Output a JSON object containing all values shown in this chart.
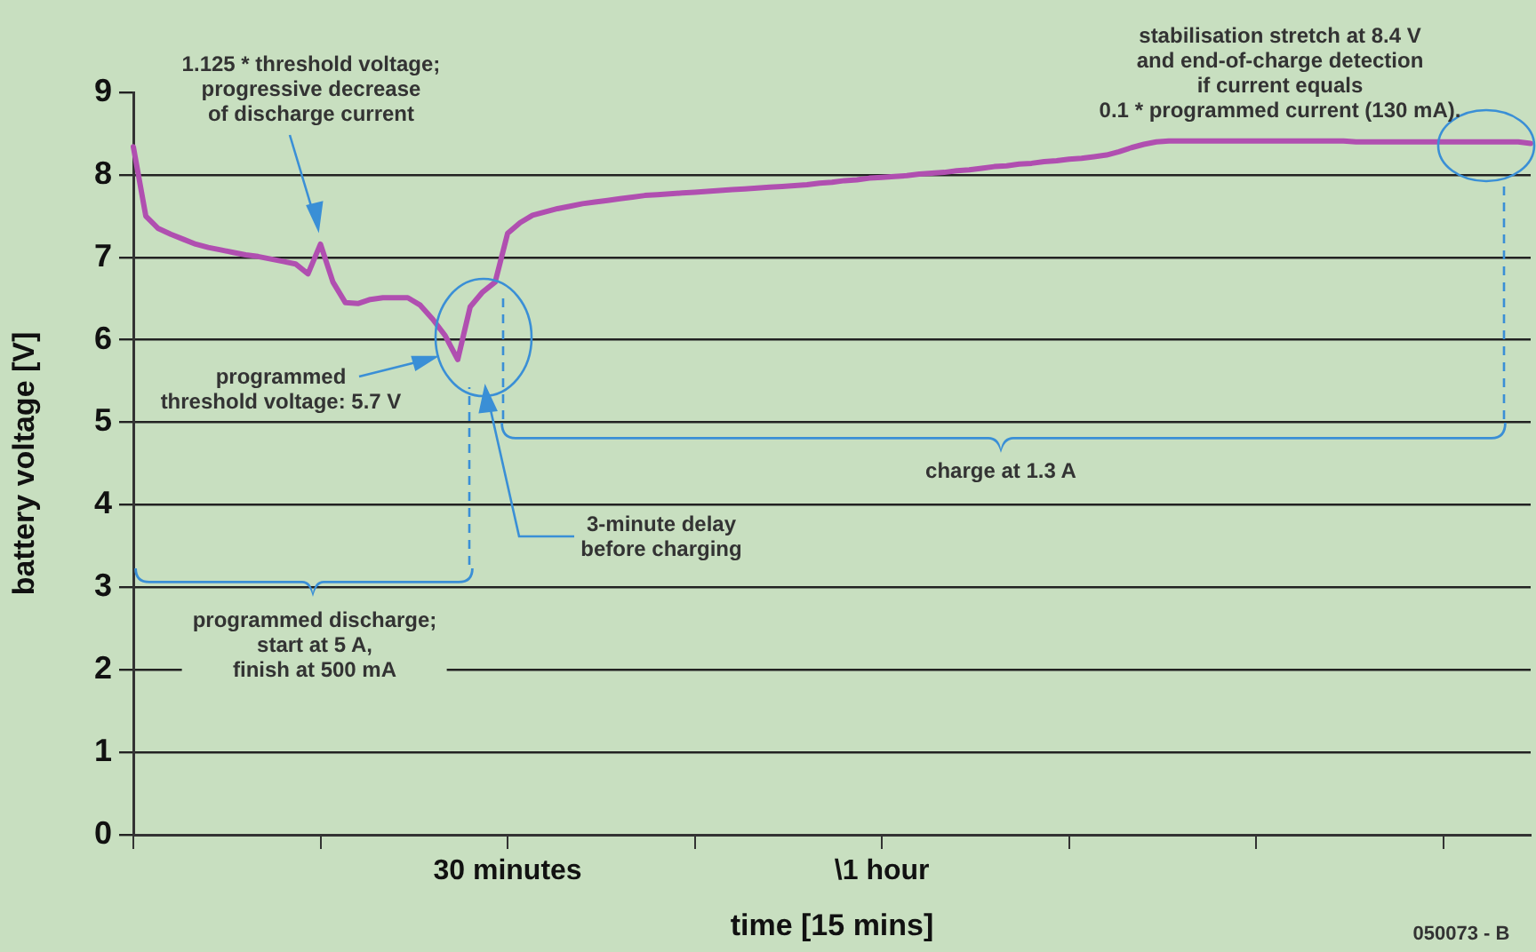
{
  "chart_data": {
    "type": "line",
    "xlabel": "time [15 mins]",
    "ylabel": "battery voltage [V]",
    "categories": [
      null,
      null,
      null,
      null,
      null,
      null,
      null,
      null,
      null,
      null,
      null,
      null,
      null,
      null,
      null,
      null,
      null,
      null,
      null,
      null,
      null,
      null,
      null,
      null,
      null,
      null,
      null,
      null,
      null,
      null,
      "30 minutes",
      null,
      null,
      null,
      null,
      null,
      null,
      null,
      null,
      null,
      null,
      null,
      null,
      null,
      null,
      null,
      null,
      null,
      null,
      null,
      null,
      null,
      null,
      null,
      null,
      null,
      null,
      null,
      null,
      null,
      "\\1 hour",
      null,
      null,
      null,
      null,
      null,
      null,
      null,
      null,
      null,
      null,
      null,
      null,
      null,
      null,
      null,
      null,
      null,
      null,
      null,
      null,
      null,
      null,
      null,
      null,
      null,
      null,
      null,
      null,
      null,
      null,
      null,
      null,
      null,
      null,
      null,
      null,
      null,
      null,
      null,
      null,
      null,
      null,
      null,
      null,
      null,
      null,
      null,
      null,
      null,
      null,
      null,
      null
    ],
    "ylim": [
      0,
      9
    ],
    "yticks": [
      0,
      1,
      2,
      3,
      4,
      5,
      6,
      7,
      8,
      9
    ],
    "grid": "y",
    "legend": false,
    "marker": "none",
    "line_style": "solid",
    "series": [
      {
        "color": "#b04fb0",
        "values": [
          8.34,
          7.5,
          7.35,
          7.28,
          7.22,
          7.16,
          7.12,
          7.09,
          7.06,
          7.03,
          7.01,
          6.98,
          6.95,
          6.92,
          6.8,
          7.16,
          6.7,
          6.45,
          6.44,
          6.49,
          6.51,
          6.51,
          6.51,
          6.42,
          6.25,
          6.05,
          5.76,
          6.4,
          6.58,
          6.7,
          7.29,
          7.42,
          7.51,
          7.55,
          7.59,
          7.62,
          7.65,
          7.67,
          7.69,
          7.71,
          7.73,
          7.75,
          7.76,
          7.77,
          7.78,
          7.79,
          7.8,
          7.81,
          7.82,
          7.83,
          7.84,
          7.85,
          7.86,
          7.87,
          7.88,
          7.9,
          7.91,
          7.93,
          7.94,
          7.96,
          7.97,
          7.98,
          7.99,
          8.01,
          8.02,
          8.03,
          8.05,
          8.06,
          8.08,
          8.1,
          8.11,
          8.13,
          8.14,
          8.16,
          8.17,
          8.19,
          8.2,
          8.22,
          8.24,
          8.28,
          8.33,
          8.37,
          8.4,
          8.41,
          8.41,
          8.41,
          8.41,
          8.41,
          8.41,
          8.41,
          8.41,
          8.41,
          8.41,
          8.41,
          8.41,
          8.41,
          8.41,
          8.41,
          8.4,
          8.4,
          8.4,
          8.4,
          8.4,
          8.4,
          8.4,
          8.4,
          8.4,
          8.4,
          8.4,
          8.4,
          8.4,
          8.4,
          8.38
        ]
      }
    ],
    "annotations": [
      "1.125 * threshold voltage;\nprogressive decrease\nof discharge current",
      "programmed\nthreshold voltage: 5.7 V",
      "3-minute delay\nbefore charging",
      "programmed discharge;\nstart at 5 A,\nfinish at 500 mA",
      "charge at 1.3 A",
      "stabilisation stretch at 8.4 V\nand end-of-charge detection\nif current equals\n0.1 * programmed current (130 mA).",
      "050073 - B"
    ]
  }
}
